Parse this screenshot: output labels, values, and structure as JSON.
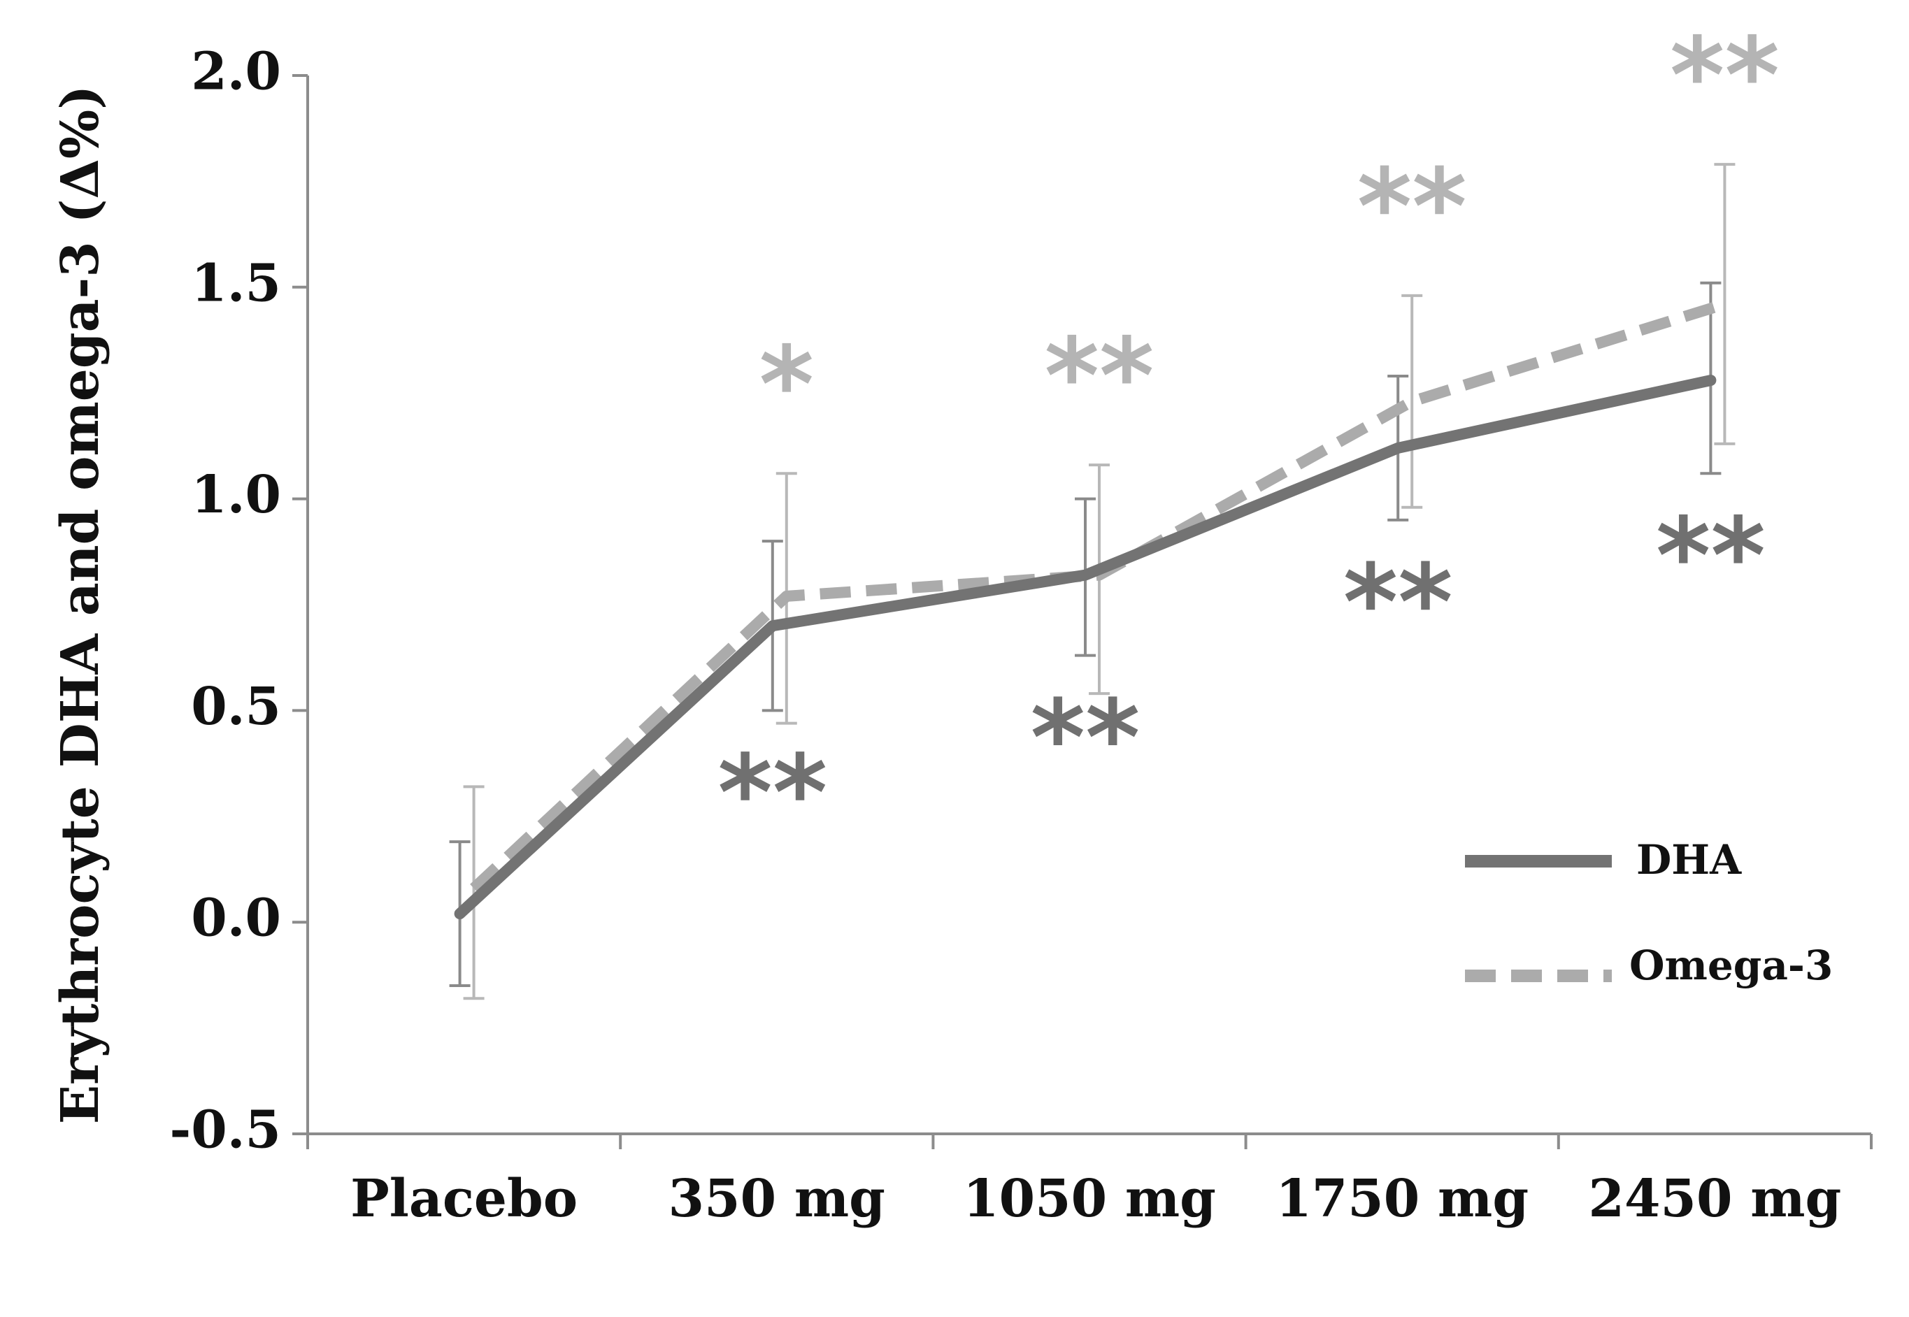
{
  "chart_data": {
    "type": "line",
    "title": "",
    "xlabel": "",
    "ylabel": "Erythrocyte DHA and omega-3 (Δ%)",
    "categories": [
      "Placebo",
      "350 mg",
      "1050 mg",
      "1750 mg",
      "2450 mg"
    ],
    "ylim": [
      -0.5,
      2.0
    ],
    "yticks": [
      "2.0",
      "1.5",
      "1.0",
      "0.5",
      "0.0",
      "-0.5"
    ],
    "grid": false,
    "legend_position": "lower-right",
    "series": [
      {
        "name": "DHA",
        "style": "solid",
        "color": "#737373",
        "values": [
          0.02,
          0.7,
          0.82,
          1.12,
          1.28
        ],
        "err_low": [
          -0.15,
          0.5,
          0.63,
          0.95,
          1.06
        ],
        "err_high": [
          0.19,
          0.9,
          1.0,
          1.29,
          1.51
        ],
        "significance": [
          "",
          "**",
          "**",
          "**",
          "**"
        ]
      },
      {
        "name": "Omega-3",
        "style": "dashed",
        "color": "#ababab",
        "values": [
          0.08,
          0.77,
          0.82,
          1.23,
          1.46
        ],
        "err_low": [
          -0.18,
          0.47,
          0.54,
          0.98,
          1.13
        ],
        "err_high": [
          0.32,
          1.06,
          1.08,
          1.48,
          1.79
        ],
        "significance": [
          "",
          "*",
          "**",
          "**",
          "**"
        ]
      }
    ]
  }
}
